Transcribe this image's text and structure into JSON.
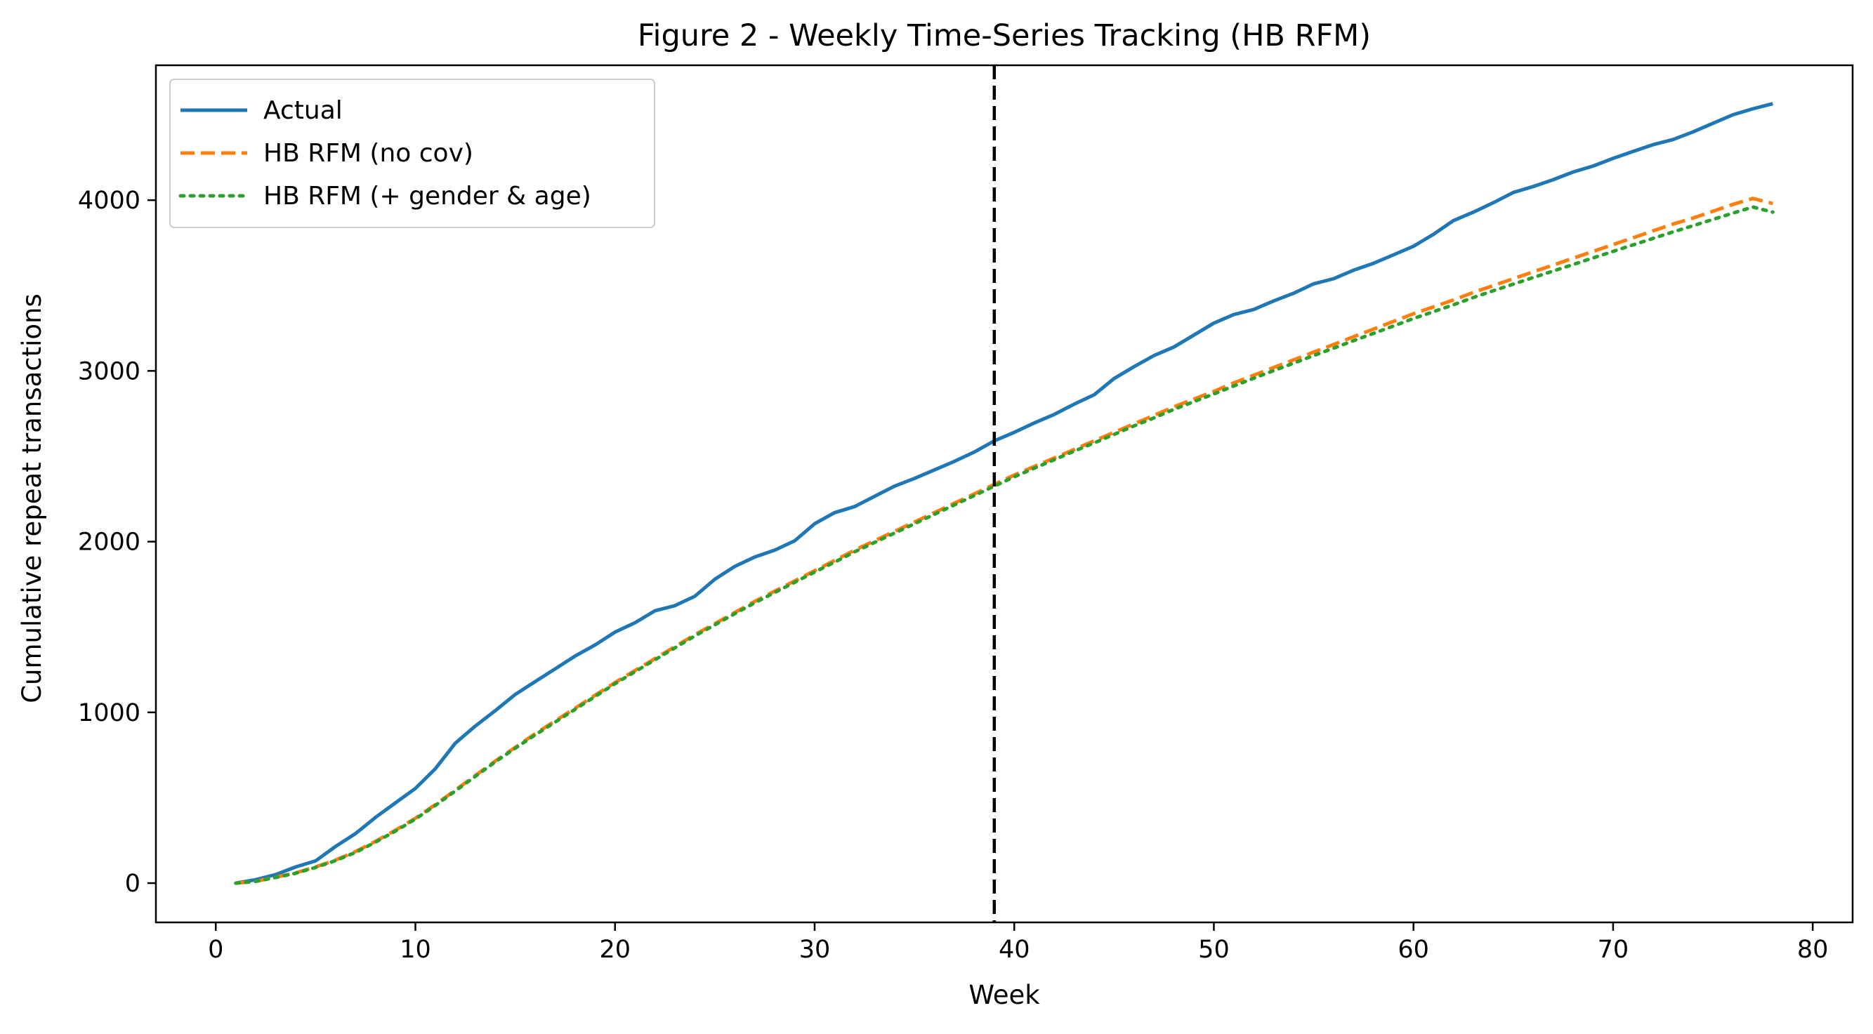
{
  "chart_data": {
    "type": "line",
    "title": "Figure 2 - Weekly Time-Series Tracking (HB RFM)",
    "xlabel": "Week",
    "ylabel": "Cumulative repeat transactions",
    "xlim": [
      -3,
      82
    ],
    "ylim": [
      -230,
      4790
    ],
    "xticks": [
      0,
      10,
      20,
      30,
      40,
      50,
      60,
      70,
      80
    ],
    "yticks": [
      0,
      1000,
      2000,
      3000,
      4000
    ],
    "grid": false,
    "legend_position": "top-left",
    "vline": {
      "x": 39,
      "color": "#000000",
      "style": "dashed"
    },
    "x": [
      1,
      2,
      3,
      4,
      5,
      6,
      7,
      8,
      9,
      10,
      11,
      12,
      13,
      14,
      15,
      16,
      17,
      18,
      19,
      20,
      21,
      22,
      23,
      24,
      25,
      26,
      27,
      28,
      29,
      30,
      31,
      32,
      33,
      34,
      35,
      36,
      37,
      38,
      39,
      40,
      41,
      42,
      43,
      44,
      45,
      46,
      47,
      48,
      49,
      50,
      51,
      52,
      53,
      54,
      55,
      56,
      57,
      58,
      59,
      60,
      61,
      62,
      63,
      64,
      65,
      66,
      67,
      68,
      69,
      70,
      71,
      72,
      73,
      74,
      75,
      76,
      77,
      78
    ],
    "series": [
      {
        "name": "Actual",
        "color": "#1f77b4",
        "style": "solid",
        "values": [
          0,
          20,
          50,
          95,
          130,
          215,
          290,
          385,
          470,
          555,
          670,
          820,
          920,
          1010,
          1105,
          1180,
          1255,
          1330,
          1395,
          1470,
          1525,
          1595,
          1625,
          1680,
          1780,
          1855,
          1910,
          1950,
          2005,
          2105,
          2170,
          2205,
          2265,
          2325,
          2370,
          2420,
          2470,
          2525,
          2590,
          2640,
          2695,
          2745,
          2805,
          2860,
          2955,
          3025,
          3090,
          3140,
          3210,
          3280,
          3330,
          3360,
          3410,
          3455,
          3510,
          3540,
          3590,
          3630,
          3680,
          3730,
          3800,
          3880,
          3930,
          3985,
          4045,
          4080,
          4120,
          4165,
          4200,
          4245,
          4285,
          4325,
          4355,
          4400,
          4450,
          4500,
          4535,
          4565
        ]
      },
      {
        "name": "HB RFM (no cov)",
        "color": "#ff7f0e",
        "style": "dashed",
        "values": [
          0,
          10,
          35,
          60,
          95,
          135,
          185,
          245,
          310,
          380,
          460,
          545,
          630,
          715,
          795,
          875,
          950,
          1025,
          1100,
          1175,
          1245,
          1315,
          1385,
          1455,
          1520,
          1585,
          1650,
          1710,
          1770,
          1830,
          1890,
          1950,
          2005,
          2060,
          2115,
          2170,
          2225,
          2280,
          2335,
          2390,
          2440,
          2490,
          2540,
          2590,
          2640,
          2690,
          2740,
          2790,
          2835,
          2880,
          2930,
          2975,
          3020,
          3065,
          3110,
          3155,
          3200,
          3245,
          3290,
          3335,
          3375,
          3415,
          3460,
          3500,
          3540,
          3580,
          3620,
          3660,
          3700,
          3740,
          3780,
          3820,
          3860,
          3895,
          3935,
          3975,
          4010,
          3980
        ]
      },
      {
        "name": "HB RFM (+ gender & age)",
        "color": "#2ca02c",
        "style": "dotted",
        "values": [
          0,
          10,
          33,
          58,
          92,
          132,
          180,
          240,
          305,
          375,
          455,
          540,
          625,
          710,
          790,
          868,
          943,
          1018,
          1093,
          1168,
          1238,
          1308,
          1378,
          1448,
          1513,
          1578,
          1642,
          1702,
          1762,
          1822,
          1880,
          1940,
          1995,
          2050,
          2105,
          2160,
          2215,
          2270,
          2325,
          2380,
          2430,
          2480,
          2530,
          2578,
          2628,
          2678,
          2725,
          2775,
          2820,
          2865,
          2912,
          2957,
          3002,
          3045,
          3090,
          3133,
          3177,
          3220,
          3263,
          3307,
          3347,
          3387,
          3430,
          3470,
          3508,
          3547,
          3585,
          3623,
          3662,
          3700,
          3738,
          3776,
          3814,
          3850,
          3887,
          3924,
          3960,
          3930
        ]
      }
    ]
  }
}
